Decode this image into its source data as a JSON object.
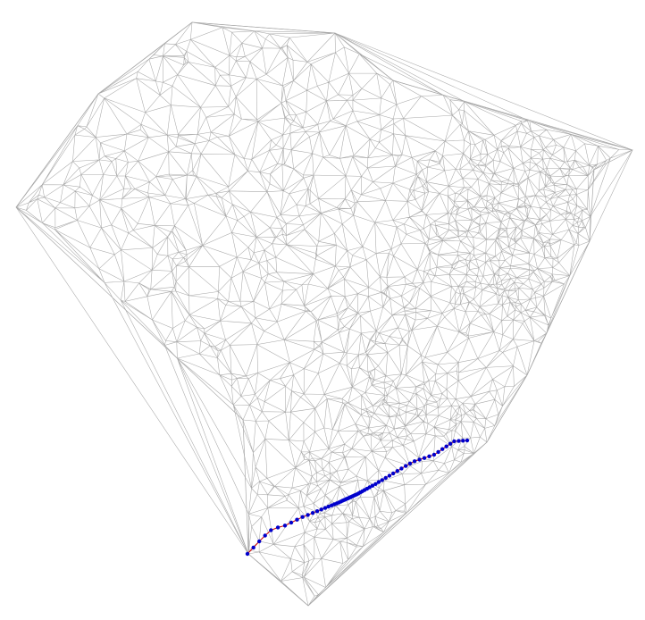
{
  "diagram": {
    "type": "triangulated-mesh-with-path",
    "background_color": "#ffffff",
    "mesh_color": "#a8a8a8",
    "path_color": "#d00000",
    "node_color": "#0000cc",
    "path_node_count": 62
  }
}
